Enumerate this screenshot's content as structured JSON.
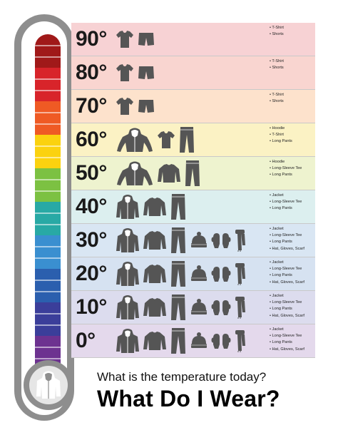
{
  "colors": {
    "tube": [
      "#a01919",
      "#d8242a",
      "#ef5a24",
      "#fbd20f",
      "#7cc142",
      "#28a9a5",
      "#3a8fd0",
      "#2b5fae",
      "#3b3e9a",
      "#6d3290"
    ],
    "bands": [
      "#f7d2d4",
      "#f9d5d0",
      "#fde2cc",
      "#fbf2c4",
      "#eef3cf",
      "#dcefef",
      "#d9e6f3",
      "#d6e2f1",
      "#dcdcee",
      "#e4d9ec"
    ],
    "icon": "#555555"
  },
  "rows": [
    {
      "temp": "90°",
      "icons": [
        "tshirt-icon",
        "shorts-icon"
      ],
      "items": [
        "T-Shirt",
        "Shorts"
      ]
    },
    {
      "temp": "80°",
      "icons": [
        "tshirt-icon",
        "shorts-icon"
      ],
      "items": [
        "T-Shirt",
        "Shorts"
      ]
    },
    {
      "temp": "70°",
      "icons": [
        "tshirt-icon",
        "shorts-icon"
      ],
      "items": [
        "T-Shirt",
        "Shorts"
      ]
    },
    {
      "temp": "60°",
      "icons": [
        "hoodie-icon",
        "tshirt-icon",
        "pants-icon"
      ],
      "items": [
        "Hoodie",
        "T-Shirt",
        "Long Pants"
      ]
    },
    {
      "temp": "50°",
      "icons": [
        "hoodie-icon",
        "longsleeve-icon",
        "pants-icon"
      ],
      "items": [
        "Hoodie",
        "Long-Sleeve Tee",
        "Long Pants"
      ]
    },
    {
      "temp": "40°",
      "icons": [
        "jacket-icon",
        "longsleeve-icon",
        "pants-icon"
      ],
      "items": [
        "Jacket",
        "Long-Sleeve Tee",
        "Long Pants"
      ]
    },
    {
      "temp": "30°",
      "icons": [
        "jacket-icon",
        "longsleeve-icon",
        "pants-icon",
        "hat-icon",
        "gloves-icon",
        "scarf-icon"
      ],
      "items": [
        "Jacket",
        "Long-Sleeve Tee",
        "Long Pants",
        "Hat, Gloves, Scarf"
      ]
    },
    {
      "temp": "20°",
      "icons": [
        "jacket-icon",
        "longsleeve-icon",
        "pants-icon",
        "hat-icon",
        "gloves-icon",
        "scarf-icon"
      ],
      "items": [
        "Jacket",
        "Long-Sleeve Tee",
        "Long Pants",
        "Hat, Gloves, Scarf"
      ]
    },
    {
      "temp": "10°",
      "icons": [
        "jacket-icon",
        "longsleeve-icon",
        "pants-icon",
        "hat-icon",
        "gloves-icon",
        "scarf-icon"
      ],
      "items": [
        "Jacket",
        "Long-Sleeve Tee",
        "Long Pants",
        "Hat, Gloves, Scarf"
      ]
    },
    {
      "temp": "0°",
      "icons": [
        "jacket-icon",
        "longsleeve-icon",
        "pants-icon",
        "hat-icon",
        "gloves-icon",
        "scarf-icon"
      ],
      "items": [
        "Jacket",
        "Long-Sleeve Tee",
        "Long Pants",
        "Hat, Gloves, Scarf"
      ]
    }
  ],
  "question": "What is the temperature today?",
  "headline": "What Do I Wear?"
}
